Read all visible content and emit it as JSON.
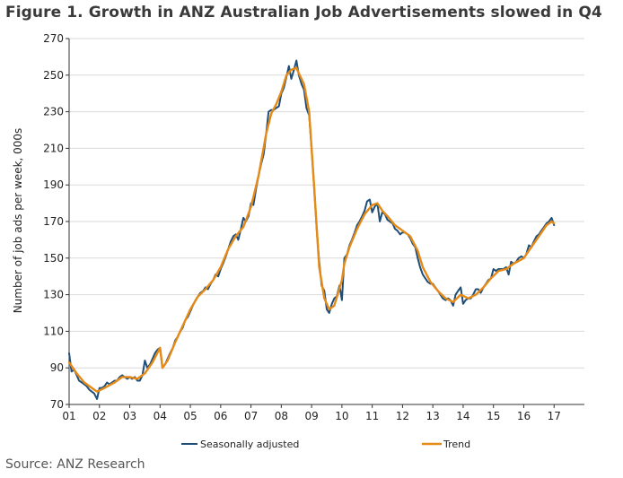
{
  "title": "Figure 1. Growth in ANZ Australian Job Advertisements slowed in Q4",
  "source": "Source: ANZ Research",
  "chart_data": {
    "type": "line",
    "ylabel": "Number of job ads per week, 000s",
    "xlabel": "",
    "ylim": [
      70,
      270
    ],
    "yticks": [
      70,
      90,
      110,
      130,
      150,
      170,
      190,
      210,
      230,
      250,
      270
    ],
    "xlim": [
      2001.0,
      2018.0
    ],
    "xticks": [
      {
        "x": 2001,
        "label": "01"
      },
      {
        "x": 2002,
        "label": "02"
      },
      {
        "x": 2003,
        "label": "03"
      },
      {
        "x": 2004,
        "label": "04"
      },
      {
        "x": 2005,
        "label": "05"
      },
      {
        "x": 2006,
        "label": "06"
      },
      {
        "x": 2007,
        "label": "07"
      },
      {
        "x": 2008,
        "label": "08"
      },
      {
        "x": 2009,
        "label": "09"
      },
      {
        "x": 2010,
        "label": "10"
      },
      {
        "x": 2011,
        "label": "11"
      },
      {
        "x": 2012,
        "label": "12"
      },
      {
        "x": 2013,
        "label": "13"
      },
      {
        "x": 2014,
        "label": "14"
      },
      {
        "x": 2015,
        "label": "15"
      },
      {
        "x": 2016,
        "label": "16"
      },
      {
        "x": 2017,
        "label": "17"
      }
    ],
    "grid": true,
    "legend_position": "bottom",
    "series": [
      {
        "name": "Seasonally adjusted",
        "color": "#1f4e79",
        "points": [
          [
            2001.0,
            98
          ],
          [
            2001.08,
            88
          ],
          [
            2001.17,
            89
          ],
          [
            2001.25,
            86
          ],
          [
            2001.33,
            83
          ],
          [
            2001.42,
            82
          ],
          [
            2001.5,
            81
          ],
          [
            2001.58,
            80
          ],
          [
            2001.67,
            78
          ],
          [
            2001.75,
            77
          ],
          [
            2001.83,
            76
          ],
          [
            2001.92,
            73
          ],
          [
            2002.0,
            79
          ],
          [
            2002.08,
            79
          ],
          [
            2002.17,
            80
          ],
          [
            2002.25,
            82
          ],
          [
            2002.33,
            81
          ],
          [
            2002.42,
            82
          ],
          [
            2002.5,
            83
          ],
          [
            2002.58,
            83
          ],
          [
            2002.67,
            85
          ],
          [
            2002.75,
            86
          ],
          [
            2002.83,
            85
          ],
          [
            2002.92,
            84
          ],
          [
            2003.0,
            85
          ],
          [
            2003.08,
            84
          ],
          [
            2003.17,
            85
          ],
          [
            2003.25,
            83
          ],
          [
            2003.33,
            83
          ],
          [
            2003.42,
            86
          ],
          [
            2003.5,
            94
          ],
          [
            2003.58,
            90
          ],
          [
            2003.67,
            92
          ],
          [
            2003.75,
            95
          ],
          [
            2003.83,
            98
          ],
          [
            2003.92,
            100
          ],
          [
            2004.0,
            101
          ],
          [
            2004.08,
            90
          ],
          [
            2004.17,
            92
          ],
          [
            2004.25,
            95
          ],
          [
            2004.33,
            98
          ],
          [
            2004.42,
            101
          ],
          [
            2004.5,
            105
          ],
          [
            2004.58,
            107
          ],
          [
            2004.67,
            110
          ],
          [
            2004.75,
            112
          ],
          [
            2004.83,
            116
          ],
          [
            2004.92,
            118
          ],
          [
            2005.0,
            121
          ],
          [
            2005.08,
            124
          ],
          [
            2005.17,
            127
          ],
          [
            2005.25,
            129
          ],
          [
            2005.33,
            131
          ],
          [
            2005.42,
            132
          ],
          [
            2005.5,
            134
          ],
          [
            2005.58,
            133
          ],
          [
            2005.67,
            136
          ],
          [
            2005.75,
            138
          ],
          [
            2005.83,
            141
          ],
          [
            2005.92,
            140
          ],
          [
            2006.0,
            144
          ],
          [
            2006.08,
            147
          ],
          [
            2006.17,
            151
          ],
          [
            2006.25,
            155
          ],
          [
            2006.33,
            159
          ],
          [
            2006.42,
            162
          ],
          [
            2006.5,
            163
          ],
          [
            2006.58,
            160
          ],
          [
            2006.67,
            166
          ],
          [
            2006.75,
            172
          ],
          [
            2006.83,
            170
          ],
          [
            2006.92,
            173
          ],
          [
            2007.0,
            180
          ],
          [
            2007.08,
            179
          ],
          [
            2007.17,
            188
          ],
          [
            2007.25,
            195
          ],
          [
            2007.33,
            201
          ],
          [
            2007.42,
            207
          ],
          [
            2007.5,
            218
          ],
          [
            2007.58,
            230
          ],
          [
            2007.67,
            231
          ],
          [
            2007.75,
            231
          ],
          [
            2007.83,
            232
          ],
          [
            2007.92,
            233
          ],
          [
            2008.0,
            240
          ],
          [
            2008.08,
            243
          ],
          [
            2008.17,
            249
          ],
          [
            2008.25,
            255
          ],
          [
            2008.33,
            248
          ],
          [
            2008.42,
            253
          ],
          [
            2008.5,
            258
          ],
          [
            2008.58,
            250
          ],
          [
            2008.67,
            245
          ],
          [
            2008.75,
            242
          ],
          [
            2008.83,
            232
          ],
          [
            2008.92,
            228
          ],
          [
            2009.0,
            210
          ],
          [
            2009.08,
            190
          ],
          [
            2009.17,
            165
          ],
          [
            2009.25,
            148
          ],
          [
            2009.33,
            135
          ],
          [
            2009.42,
            132
          ],
          [
            2009.5,
            122
          ],
          [
            2009.58,
            120
          ],
          [
            2009.67,
            125
          ],
          [
            2009.75,
            128
          ],
          [
            2009.83,
            129
          ],
          [
            2009.92,
            135
          ],
          [
            2010.0,
            127
          ],
          [
            2010.08,
            150
          ],
          [
            2010.17,
            152
          ],
          [
            2010.25,
            157
          ],
          [
            2010.33,
            160
          ],
          [
            2010.42,
            164
          ],
          [
            2010.5,
            168
          ],
          [
            2010.58,
            170
          ],
          [
            2010.67,
            173
          ],
          [
            2010.75,
            176
          ],
          [
            2010.83,
            181
          ],
          [
            2010.92,
            182
          ],
          [
            2011.0,
            175
          ],
          [
            2011.08,
            178
          ],
          [
            2011.17,
            180
          ],
          [
            2011.25,
            170
          ],
          [
            2011.33,
            175
          ],
          [
            2011.42,
            174
          ],
          [
            2011.5,
            171
          ],
          [
            2011.58,
            170
          ],
          [
            2011.67,
            169
          ],
          [
            2011.75,
            166
          ],
          [
            2011.83,
            165
          ],
          [
            2011.92,
            163
          ],
          [
            2012.0,
            164
          ],
          [
            2012.08,
            164
          ],
          [
            2012.17,
            163
          ],
          [
            2012.25,
            161
          ],
          [
            2012.33,
            158
          ],
          [
            2012.42,
            156
          ],
          [
            2012.5,
            150
          ],
          [
            2012.58,
            145
          ],
          [
            2012.67,
            141
          ],
          [
            2012.75,
            139
          ],
          [
            2012.83,
            137
          ],
          [
            2012.92,
            136
          ],
          [
            2013.0,
            136
          ],
          [
            2013.08,
            134
          ],
          [
            2013.17,
            132
          ],
          [
            2013.25,
            130
          ],
          [
            2013.33,
            128
          ],
          [
            2013.42,
            127
          ],
          [
            2013.5,
            128
          ],
          [
            2013.58,
            127
          ],
          [
            2013.67,
            124
          ],
          [
            2013.75,
            130
          ],
          [
            2013.83,
            132
          ],
          [
            2013.92,
            134
          ],
          [
            2014.0,
            125
          ],
          [
            2014.08,
            127
          ],
          [
            2014.17,
            128
          ],
          [
            2014.25,
            128
          ],
          [
            2014.33,
            130
          ],
          [
            2014.42,
            133
          ],
          [
            2014.5,
            133
          ],
          [
            2014.58,
            131
          ],
          [
            2014.67,
            134
          ],
          [
            2014.75,
            136
          ],
          [
            2014.83,
            138
          ],
          [
            2014.92,
            139
          ],
          [
            2015.0,
            144
          ],
          [
            2015.08,
            143
          ],
          [
            2015.17,
            144
          ],
          [
            2015.25,
            144
          ],
          [
            2015.33,
            144
          ],
          [
            2015.42,
            145
          ],
          [
            2015.5,
            141
          ],
          [
            2015.58,
            148
          ],
          [
            2015.67,
            147
          ],
          [
            2015.75,
            148
          ],
          [
            2015.83,
            150
          ],
          [
            2015.92,
            151
          ],
          [
            2016.0,
            150
          ],
          [
            2016.08,
            152
          ],
          [
            2016.17,
            157
          ],
          [
            2016.25,
            156
          ],
          [
            2016.33,
            159
          ],
          [
            2016.42,
            162
          ],
          [
            2016.5,
            163
          ],
          [
            2016.58,
            165
          ],
          [
            2016.67,
            167
          ],
          [
            2016.75,
            169
          ],
          [
            2016.83,
            170
          ],
          [
            2016.92,
            172
          ],
          [
            2017.0,
            168
          ]
        ]
      },
      {
        "name": "Trend",
        "color": "#e58a16",
        "points": [
          [
            2001.0,
            93
          ],
          [
            2001.25,
            87
          ],
          [
            2001.5,
            82
          ],
          [
            2001.75,
            79
          ],
          [
            2001.92,
            77
          ],
          [
            2002.17,
            79
          ],
          [
            2002.5,
            82
          ],
          [
            2002.75,
            85
          ],
          [
            2003.0,
            85
          ],
          [
            2003.25,
            84
          ],
          [
            2003.5,
            87
          ],
          [
            2003.75,
            93
          ],
          [
            2004.0,
            101
          ],
          [
            2004.08,
            90
          ],
          [
            2004.25,
            94
          ],
          [
            2004.5,
            104
          ],
          [
            2004.75,
            113
          ],
          [
            2005.0,
            122
          ],
          [
            2005.25,
            129
          ],
          [
            2005.5,
            133
          ],
          [
            2005.75,
            138
          ],
          [
            2006.0,
            145
          ],
          [
            2006.25,
            155
          ],
          [
            2006.5,
            162
          ],
          [
            2006.75,
            167
          ],
          [
            2007.0,
            178
          ],
          [
            2007.25,
            195
          ],
          [
            2007.5,
            218
          ],
          [
            2007.67,
            229
          ],
          [
            2007.83,
            234
          ],
          [
            2008.0,
            241
          ],
          [
            2008.17,
            250
          ],
          [
            2008.33,
            253
          ],
          [
            2008.5,
            254
          ],
          [
            2008.58,
            251
          ],
          [
            2008.75,
            245
          ],
          [
            2008.92,
            230
          ],
          [
            2009.08,
            190
          ],
          [
            2009.25,
            145
          ],
          [
            2009.42,
            128
          ],
          [
            2009.58,
            122
          ],
          [
            2009.75,
            124
          ],
          [
            2010.0,
            138
          ],
          [
            2010.08,
            147
          ],
          [
            2010.25,
            156
          ],
          [
            2010.5,
            166
          ],
          [
            2010.75,
            174
          ],
          [
            2011.0,
            179
          ],
          [
            2011.17,
            180
          ],
          [
            2011.33,
            176
          ],
          [
            2011.5,
            173
          ],
          [
            2011.75,
            168
          ],
          [
            2012.0,
            165
          ],
          [
            2012.25,
            162
          ],
          [
            2012.5,
            154
          ],
          [
            2012.67,
            145
          ],
          [
            2012.92,
            137
          ],
          [
            2013.17,
            132
          ],
          [
            2013.42,
            128
          ],
          [
            2013.67,
            126
          ],
          [
            2013.92,
            130
          ],
          [
            2014.17,
            128
          ],
          [
            2014.42,
            130
          ],
          [
            2014.67,
            134
          ],
          [
            2014.92,
            139
          ],
          [
            2015.17,
            143
          ],
          [
            2015.42,
            144
          ],
          [
            2015.67,
            147
          ],
          [
            2016.0,
            150
          ],
          [
            2016.25,
            156
          ],
          [
            2016.5,
            162
          ],
          [
            2016.75,
            168
          ],
          [
            2016.92,
            170
          ],
          [
            2017.0,
            169
          ]
        ]
      }
    ]
  }
}
